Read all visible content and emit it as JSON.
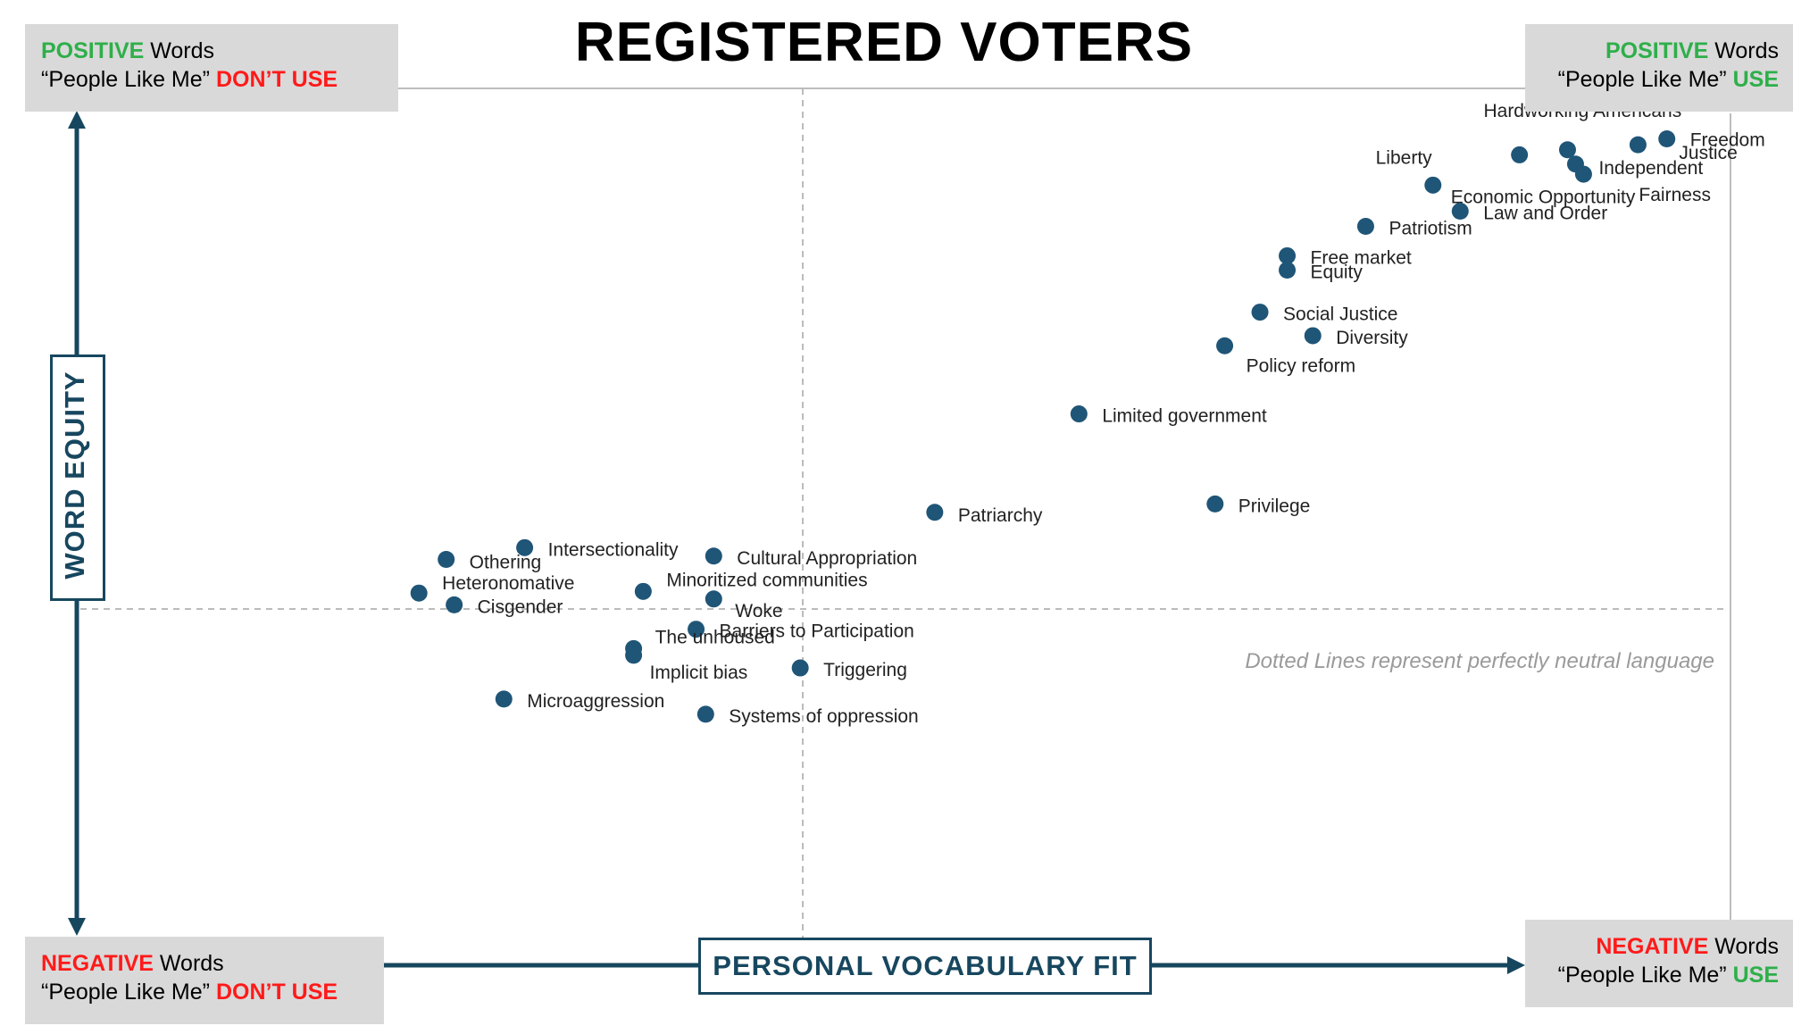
{
  "title": "REGISTERED VOTERS",
  "corners": {
    "top_left": {
      "sentiment": "POSITIVE",
      "word": " Words",
      "quote": "“People Like Me” ",
      "usage": "DON’T USE"
    },
    "top_right": {
      "sentiment": "POSITIVE",
      "word": " Words",
      "quote": "“People Like Me” ",
      "usage": "USE"
    },
    "bottom_left": {
      "sentiment": "NEGATIVE",
      "word": " Words",
      "quote": "“People Like Me” ",
      "usage": "DON’T USE"
    },
    "bottom_right": {
      "sentiment": "NEGATIVE",
      "word": " Words",
      "quote": "“People Like Me” ",
      "usage": "USE"
    }
  },
  "axes": {
    "y_label": "WORD EQUITY",
    "x_label": "PERSONAL VOCABULARY FIT"
  },
  "note": "Dotted Lines represent perfectly neutral language",
  "colors": {
    "point": "#1f5577",
    "axis": "#17475f",
    "positive": "#2eaf4a",
    "negative": "#ff1a1a",
    "corner_bg": "#d9d9d9",
    "neutral_line": "#bbbbbb"
  },
  "chart_data": {
    "type": "scatter",
    "title": "REGISTERED VOTERS",
    "xlabel": "PERSONAL VOCABULARY FIT",
    "ylabel": "WORD EQUITY",
    "neutral_lines": "dotted, at center of both axes",
    "points": [
      {
        "label": "Freedom",
        "x": 94.8,
        "y": 94.0
      },
      {
        "label": "Justice",
        "x": 93.0,
        "y": 93.3
      },
      {
        "label": "Hardworking Americans",
        "x": 88.6,
        "y": 92.7
      },
      {
        "label": "Independent",
        "x": 89.1,
        "y": 91.0
      },
      {
        "label": "Fairness",
        "x": 89.6,
        "y": 89.8
      },
      {
        "label": "Liberty",
        "x": 85.6,
        "y": 92.1
      },
      {
        "label": "Economic Opportunity",
        "x": 80.2,
        "y": 88.5
      },
      {
        "label": "Law and Order",
        "x": 81.9,
        "y": 85.4
      },
      {
        "label": "Patriotism",
        "x": 76.0,
        "y": 83.6
      },
      {
        "label": "Free market",
        "x": 71.1,
        "y": 80.1
      },
      {
        "label": "Equity",
        "x": 71.1,
        "y": 78.4
      },
      {
        "label": "Social Justice",
        "x": 69.4,
        "y": 73.4
      },
      {
        "label": "Diversity",
        "x": 72.7,
        "y": 70.6
      },
      {
        "label": "Policy reform",
        "x": 67.2,
        "y": 69.4
      },
      {
        "label": "Limited government",
        "x": 58.1,
        "y": 61.3
      },
      {
        "label": "Privilege",
        "x": 66.6,
        "y": 50.6
      },
      {
        "label": "Patriarchy",
        "x": 49.1,
        "y": 49.6
      },
      {
        "label": "Intersectionality",
        "x": 23.5,
        "y": 45.4
      },
      {
        "label": "Othering",
        "x": 18.6,
        "y": 44.0
      },
      {
        "label": "Cultural Appropriation",
        "x": 35.3,
        "y": 44.4
      },
      {
        "label": "Heteronomative",
        "x": 16.9,
        "y": 40.0
      },
      {
        "label": "Cisgender",
        "x": 19.1,
        "y": 38.6
      },
      {
        "label": "Minoritized communities",
        "x": 30.9,
        "y": 40.2
      },
      {
        "label": "Woke",
        "x": 35.3,
        "y": 39.3
      },
      {
        "label": "Barriers to Participation",
        "x": 34.2,
        "y": 35.7
      },
      {
        "label": "The unhoused",
        "x": 30.3,
        "y": 33.4
      },
      {
        "label": "Implicit bias",
        "x": 30.3,
        "y": 32.6
      },
      {
        "label": "Triggering",
        "x": 40.7,
        "y": 31.1
      },
      {
        "label": "Microaggression",
        "x": 22.2,
        "y": 27.4
      },
      {
        "label": "Systems of oppression",
        "x": 34.8,
        "y": 25.6
      }
    ]
  }
}
